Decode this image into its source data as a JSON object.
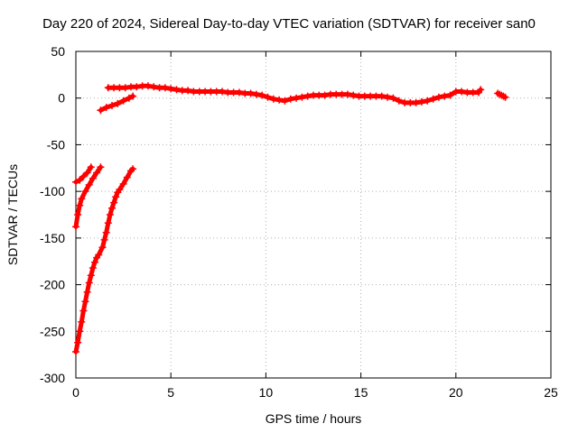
{
  "chart_data": {
    "type": "scatter",
    "title": "Day 220 of 2024, Sidereal Day-to-day VTEC variation (SDTVAR) for receiver san0",
    "xlabel": "GPS time / hours",
    "ylabel": "SDTVAR / TECUs",
    "xlim": [
      0,
      25
    ],
    "ylim": [
      -300,
      50
    ],
    "xticks": [
      0,
      5,
      10,
      15,
      20,
      25
    ],
    "yticks": [
      -300,
      -250,
      -200,
      -150,
      -100,
      -50,
      0,
      50
    ],
    "grid": true,
    "legend": "none",
    "marker": "plus",
    "color": "#ff0000",
    "series": [
      {
        "points": [
          [
            0.0,
            -90
          ],
          [
            0.2,
            -88
          ],
          [
            0.4,
            -84
          ],
          [
            0.6,
            -80
          ],
          [
            0.8,
            -74
          ]
        ]
      },
      {
        "points": [
          [
            0.0,
            -138
          ],
          [
            0.1,
            -125
          ],
          [
            0.2,
            -115
          ],
          [
            0.3,
            -108
          ],
          [
            0.5,
            -100
          ],
          [
            0.7,
            -93
          ],
          [
            0.9,
            -86
          ],
          [
            1.1,
            -80
          ],
          [
            1.3,
            -74
          ]
        ]
      },
      {
        "points": [
          [
            0.0,
            -272
          ],
          [
            0.1,
            -262
          ],
          [
            0.2,
            -250
          ],
          [
            0.3,
            -240
          ],
          [
            0.4,
            -228
          ],
          [
            0.5,
            -218
          ],
          [
            0.6,
            -208
          ],
          [
            0.7,
            -198
          ],
          [
            0.8,
            -190
          ],
          [
            0.9,
            -182
          ],
          [
            1.0,
            -176
          ],
          [
            1.1,
            -171
          ],
          [
            1.2,
            -168
          ],
          [
            1.4,
            -160
          ],
          [
            1.5,
            -152
          ],
          [
            1.6,
            -144
          ],
          [
            1.7,
            -134
          ],
          [
            1.8,
            -125
          ],
          [
            1.9,
            -118
          ],
          [
            2.0,
            -112
          ],
          [
            2.1,
            -106
          ],
          [
            2.2,
            -101
          ],
          [
            2.3,
            -98
          ],
          [
            2.5,
            -92
          ],
          [
            2.7,
            -85
          ],
          [
            2.9,
            -78
          ],
          [
            3.0,
            -76
          ]
        ]
      },
      {
        "points": [
          [
            1.3,
            -13
          ],
          [
            1.6,
            -10
          ],
          [
            1.9,
            -8
          ],
          [
            2.2,
            -6
          ],
          [
            2.5,
            -3
          ],
          [
            2.8,
            0
          ],
          [
            3.0,
            2
          ]
        ]
      },
      {
        "points": [
          [
            1.7,
            11
          ],
          [
            2.0,
            11
          ],
          [
            2.3,
            11
          ],
          [
            2.6,
            11
          ],
          [
            2.9,
            12
          ],
          [
            3.2,
            12
          ],
          [
            3.5,
            13
          ],
          [
            3.8,
            13
          ],
          [
            4.1,
            12
          ],
          [
            4.4,
            11
          ],
          [
            4.7,
            11
          ],
          [
            5.0,
            10
          ],
          [
            5.3,
            9
          ],
          [
            5.6,
            8
          ],
          [
            5.9,
            8
          ],
          [
            6.2,
            7
          ],
          [
            6.5,
            7
          ],
          [
            6.8,
            7
          ],
          [
            7.1,
            7
          ],
          [
            7.4,
            7
          ],
          [
            7.7,
            7
          ],
          [
            8.0,
            6
          ],
          [
            8.3,
            6
          ],
          [
            8.6,
            6
          ],
          [
            8.9,
            5
          ],
          [
            9.2,
            5
          ],
          [
            9.5,
            4
          ],
          [
            9.8,
            3
          ],
          [
            10.1,
            1
          ],
          [
            10.4,
            -1
          ],
          [
            10.7,
            -2
          ],
          [
            11.0,
            -3
          ],
          [
            11.3,
            -1
          ],
          [
            11.6,
            0
          ],
          [
            11.9,
            1
          ],
          [
            12.2,
            2
          ],
          [
            12.5,
            3
          ],
          [
            12.8,
            3
          ],
          [
            13.1,
            3
          ],
          [
            13.4,
            4
          ],
          [
            13.7,
            4
          ],
          [
            14.0,
            4
          ],
          [
            14.3,
            4
          ],
          [
            14.6,
            3
          ],
          [
            14.9,
            2
          ],
          [
            15.2,
            2
          ],
          [
            15.5,
            2
          ],
          [
            15.8,
            2
          ],
          [
            16.1,
            2
          ],
          [
            16.4,
            1
          ],
          [
            16.7,
            0
          ],
          [
            17.0,
            -3
          ],
          [
            17.3,
            -5
          ],
          [
            17.6,
            -5
          ],
          [
            17.9,
            -5
          ],
          [
            18.2,
            -4
          ],
          [
            18.5,
            -3
          ],
          [
            18.8,
            -1
          ],
          [
            19.1,
            1
          ],
          [
            19.4,
            2
          ],
          [
            19.7,
            3
          ],
          [
            20.0,
            7
          ],
          [
            20.3,
            7
          ],
          [
            20.6,
            6
          ],
          [
            20.9,
            6
          ],
          [
            21.2,
            6
          ],
          [
            21.3,
            9
          ]
        ]
      },
      {
        "points": [
          [
            22.2,
            5
          ],
          [
            22.3,
            4
          ],
          [
            22.4,
            3
          ],
          [
            22.5,
            2
          ],
          [
            22.6,
            1
          ]
        ]
      }
    ]
  }
}
